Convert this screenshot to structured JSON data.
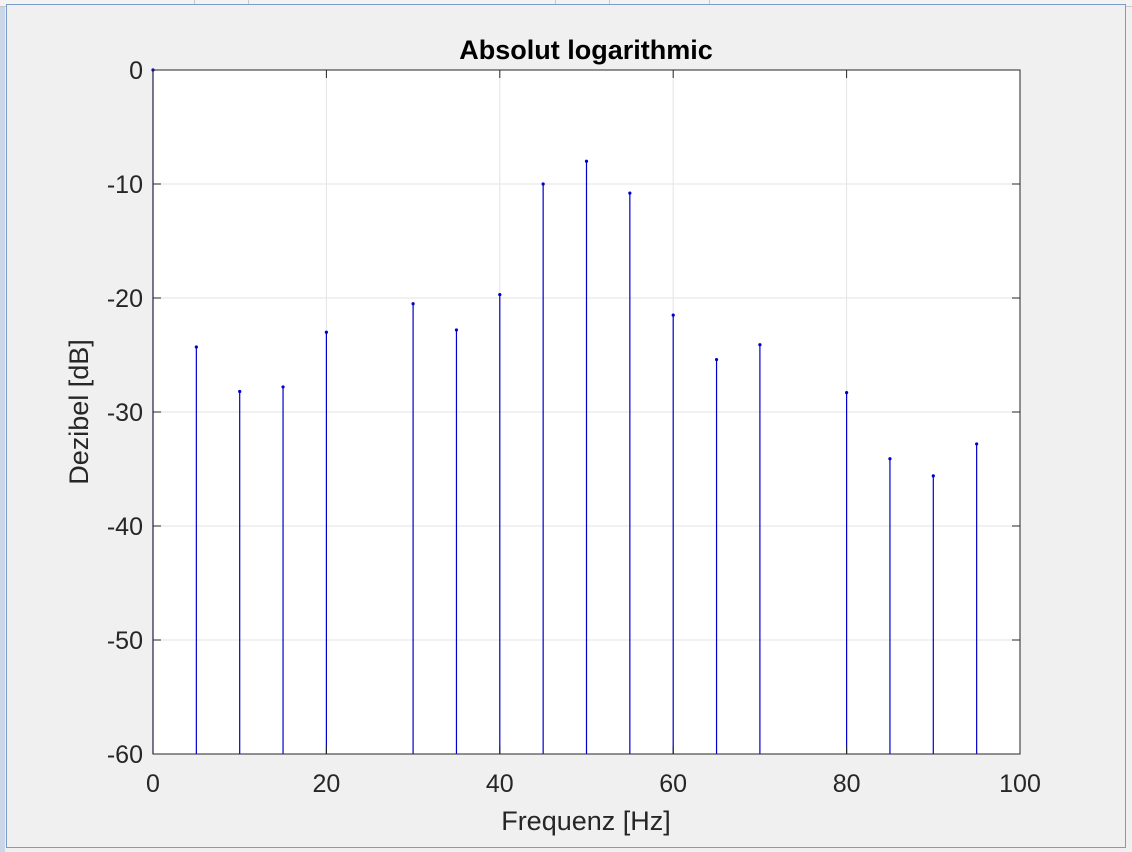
{
  "chart_data": {
    "type": "stem",
    "title": "Absolut logarithmic",
    "xlabel": "Frequenz [Hz]",
    "ylabel": "Dezibel [dB]",
    "xlim": [
      0,
      100
    ],
    "ylim": [
      -60,
      0
    ],
    "xticks": [
      0,
      20,
      40,
      60,
      80,
      100
    ],
    "yticks": [
      0,
      -10,
      -20,
      -30,
      -40,
      -50,
      -60
    ],
    "grid": true,
    "color": "#0000cc",
    "points": [
      {
        "x": 0,
        "y": 0
      },
      {
        "x": 5,
        "y": -24.3
      },
      {
        "x": 10,
        "y": -28.2
      },
      {
        "x": 15,
        "y": -27.8
      },
      {
        "x": 20,
        "y": -23.0
      },
      {
        "x": 30,
        "y": -20.5
      },
      {
        "x": 35,
        "y": -22.8
      },
      {
        "x": 40,
        "y": -19.7
      },
      {
        "x": 45,
        "y": -10.0
      },
      {
        "x": 50,
        "y": -8.0
      },
      {
        "x": 55,
        "y": -10.8
      },
      {
        "x": 60,
        "y": -21.5
      },
      {
        "x": 65,
        "y": -25.4
      },
      {
        "x": 70,
        "y": -24.1
      },
      {
        "x": 80,
        "y": -28.3
      },
      {
        "x": 85,
        "y": -34.1
      },
      {
        "x": 90,
        "y": -35.6
      },
      {
        "x": 95,
        "y": -32.8
      }
    ]
  }
}
